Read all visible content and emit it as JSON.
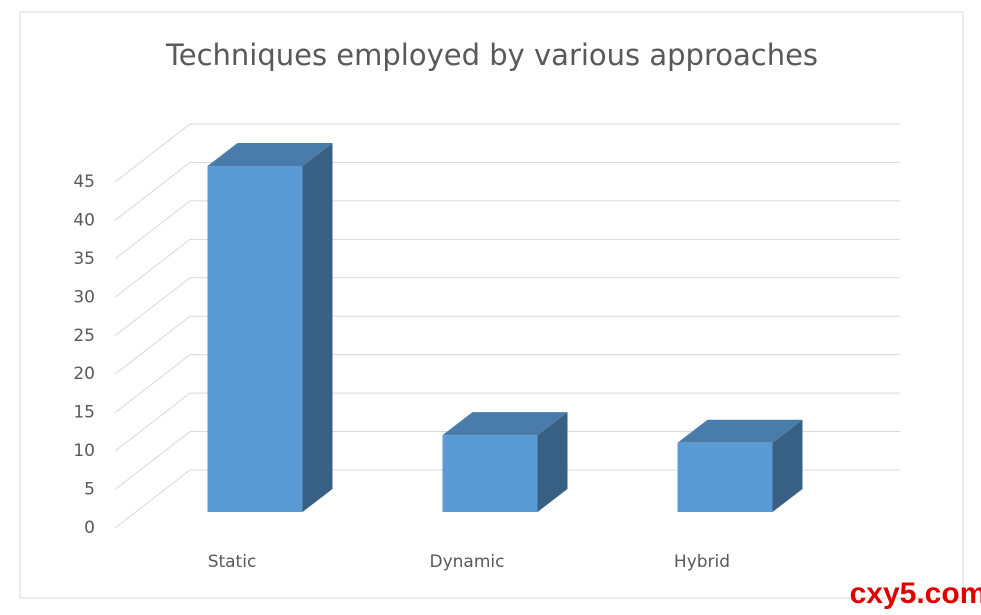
{
  "chart_data": {
    "type": "bar3d",
    "title": "Techniques employed by various approaches",
    "categories": [
      "Static",
      "Dynamic",
      "Hybrid"
    ],
    "values": [
      45,
      10,
      9
    ],
    "color": "#5b9bd5",
    "ylim": [
      0,
      45
    ],
    "yticks": [
      0,
      5,
      10,
      15,
      20,
      25,
      30,
      35,
      40,
      45
    ],
    "grid": true
  },
  "watermark": "cxy5.com"
}
